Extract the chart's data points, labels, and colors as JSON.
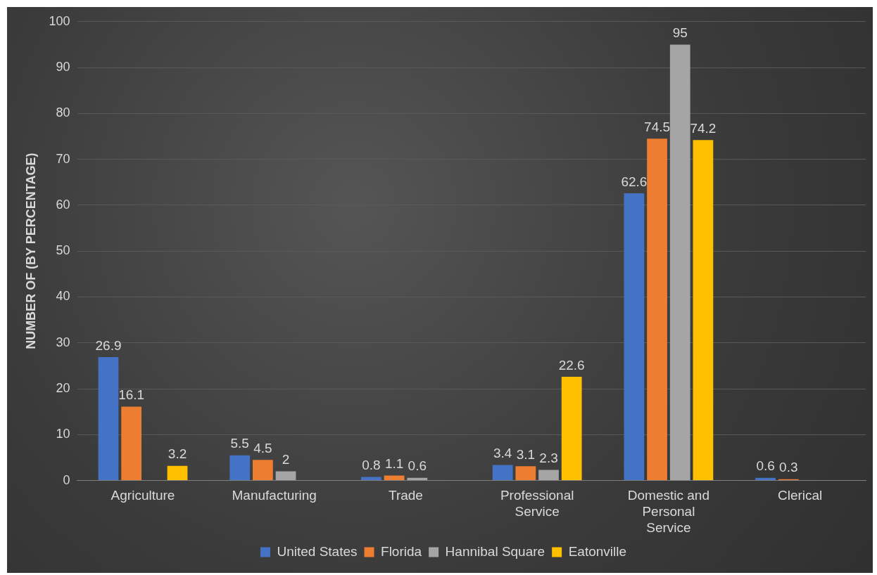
{
  "chart_data": {
    "type": "bar",
    "ylabel": "NUMBER OF (BY PERCENTAGE)",
    "categories": [
      "Agriculture",
      "Manufacturing",
      "Trade",
      "Professional Service",
      "Domestic and Personal Service",
      "Clerical"
    ],
    "series": [
      {
        "name": "United States",
        "color": "#4472c4",
        "values": [
          26.9,
          5.5,
          0.8,
          3.4,
          62.6,
          0.6
        ]
      },
      {
        "name": "Florida",
        "color": "#ed7d31",
        "values": [
          16.1,
          4.5,
          1.1,
          3.1,
          74.5,
          0.3
        ]
      },
      {
        "name": "Hannibal Square",
        "color": "#a5a5a5",
        "values": [
          null,
          2,
          0.6,
          2.3,
          95,
          null
        ]
      },
      {
        "name": "Eatonville",
        "color": "#ffc000",
        "values": [
          3.2,
          null,
          null,
          22.6,
          74.2,
          null
        ]
      }
    ],
    "ylim": [
      0,
      100
    ],
    "yticks": [
      0,
      10,
      20,
      30,
      40,
      50,
      60,
      70,
      80,
      90,
      100
    ],
    "grid": "y",
    "legend": "bottom",
    "data_labels": true
  }
}
